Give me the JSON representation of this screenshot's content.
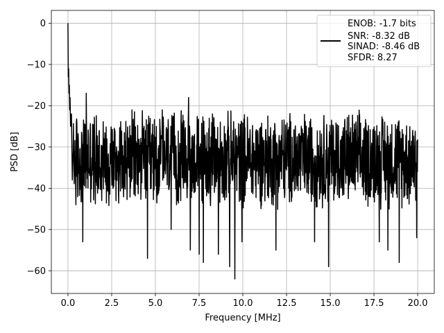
{
  "chart_data": {
    "type": "line",
    "title": "",
    "xlabel": "Frequency [MHz]",
    "ylabel": "PSD [dB]",
    "xlim": [
      -0.95,
      20.95
    ],
    "ylim": [
      -65.5,
      3.1
    ],
    "xticks": [
      0.0,
      2.5,
      5.0,
      7.5,
      10.0,
      12.5,
      15.0,
      17.5,
      20.0
    ],
    "xtick_labels": [
      "0.0",
      "2.5",
      "5.0",
      "7.5",
      "10.0",
      "12.5",
      "15.0",
      "17.5",
      "20.0"
    ],
    "yticks": [
      0,
      -10,
      -20,
      -30,
      -40,
      -50,
      -60
    ],
    "ytick_labels": [
      "0",
      "−10",
      "−20",
      "−30",
      "−40",
      "−50",
      "−60"
    ],
    "grid": true,
    "legend_position": "top-right",
    "legend_lines": [
      "ENOB: -1.7 bits",
      "SNR: -8.32 dB",
      "SINAD: -8.46 dB",
      "SFDR: 8.27"
    ],
    "series": [
      {
        "color": "#000000",
        "noise_floor_db": -33,
        "noise_range_db": [
          -45,
          -22
        ],
        "peak": {
          "x": 0.0,
          "y": 0.0
        },
        "low_frequency_decay": [
          {
            "x": 0.0,
            "y": 0.0
          },
          {
            "x": 0.01,
            "y": -7
          },
          {
            "x": 0.02,
            "y": -13
          },
          {
            "x": 0.04,
            "y": -11
          },
          {
            "x": 0.06,
            "y": -17
          },
          {
            "x": 0.08,
            "y": -15
          },
          {
            "x": 0.1,
            "y": -21
          },
          {
            "x": 0.12,
            "y": -18
          },
          {
            "x": 0.15,
            "y": -25
          },
          {
            "x": 0.2,
            "y": -22
          },
          {
            "x": 0.25,
            "y": -38
          },
          {
            "x": 0.3,
            "y": -26
          }
        ],
        "notable_spikes": [
          {
            "x": 0.28,
            "y": -31
          },
          {
            "x": 0.45,
            "y": -44
          },
          {
            "x": 0.85,
            "y": -53
          },
          {
            "x": 1.05,
            "y": -17
          },
          {
            "x": 4.55,
            "y": -57
          },
          {
            "x": 5.4,
            "y": -21
          },
          {
            "x": 5.9,
            "y": -50
          },
          {
            "x": 6.9,
            "y": -18
          },
          {
            "x": 7.0,
            "y": -55
          },
          {
            "x": 7.5,
            "y": -56
          },
          {
            "x": 7.75,
            "y": -58
          },
          {
            "x": 8.6,
            "y": -56
          },
          {
            "x": 9.25,
            "y": -59
          },
          {
            "x": 9.55,
            "y": -62
          },
          {
            "x": 9.95,
            "y": -53
          },
          {
            "x": 11.9,
            "y": -55
          },
          {
            "x": 14.1,
            "y": -53
          },
          {
            "x": 14.9,
            "y": -59
          },
          {
            "x": 17.8,
            "y": -53
          },
          {
            "x": 18.3,
            "y": -55
          },
          {
            "x": 18.95,
            "y": -58
          },
          {
            "x": 19.95,
            "y": -52
          }
        ]
      }
    ]
  }
}
